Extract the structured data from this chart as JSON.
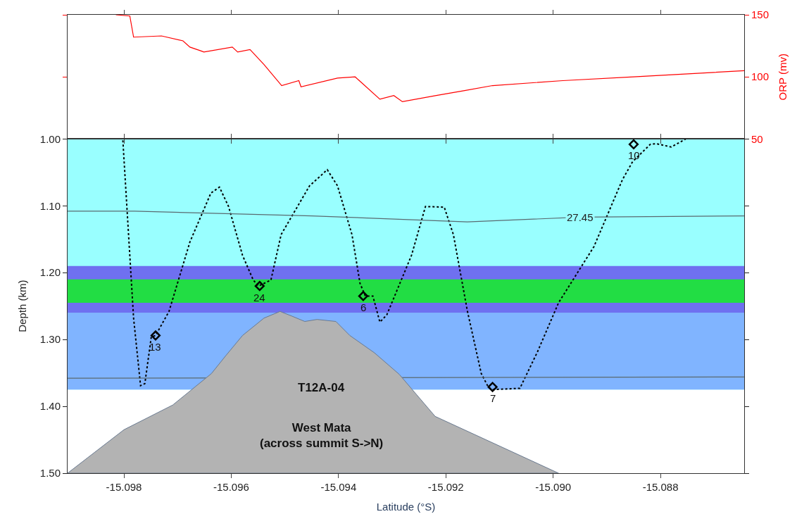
{
  "chart_data": [
    {
      "type": "line",
      "y2label": "ORP (mv)",
      "xlim": [
        -15.09905,
        -15.08644
      ],
      "xticks": [
        -15.098,
        -15.096,
        -15.094,
        -15.092,
        -15.09,
        -15.088
      ],
      "y2lim": [
        50,
        150
      ],
      "y2ticks": [
        50,
        100,
        150
      ],
      "tick_labels": "y",
      "grid": false,
      "legend": false,
      "series": [
        {
          "color": "#ff0000",
          "axis": "y2",
          "x": [
            -15.09815,
            -15.09789,
            -15.09782,
            -15.0973,
            -15.0969,
            -15.09677,
            -15.09657,
            -15.09651,
            -15.09598,
            -15.09588,
            -15.09565,
            -15.09539,
            -15.09506,
            -15.09474,
            -15.0947,
            -15.09402,
            -15.09369,
            -15.09323,
            -15.09297,
            -15.09281,
            -15.09218,
            -15.09165,
            -15.09113,
            -15.08982,
            -15.0885,
            -15.08644
          ],
          "values": [
            150,
            149,
            132,
            133,
            129,
            124,
            121,
            120,
            124,
            120,
            122,
            110,
            93,
            97,
            92,
            99,
            100,
            82,
            85,
            80,
            85,
            89,
            93,
            97,
            100,
            105
          ]
        }
      ]
    },
    {
      "type": "line",
      "xlabel": "Latitude (°S)",
      "ylabel": "Depth (km)",
      "xlim": [
        -15.09905,
        -15.08644
      ],
      "xticks": [
        -15.098,
        -15.096,
        -15.094,
        -15.092,
        {
          "value": -15.09,
          "label": "-15.090"
        },
        -15.088
      ],
      "ylim": [
        1.5,
        1.0
      ],
      "yticks": [
        {
          "value": 1.0,
          "label": "1.00"
        },
        {
          "value": 1.1,
          "label": "1.10"
        },
        {
          "value": 1.2,
          "label": "1.20"
        },
        {
          "value": 1.3,
          "label": "1.30"
        },
        {
          "value": 1.4,
          "label": "1.40"
        },
        {
          "value": 1.5,
          "label": "1.50"
        }
      ],
      "grid": false,
      "legend": false,
      "bands": [
        {
          "axis": "y",
          "from": 1.0,
          "to": 1.375,
          "color": "#99ffff"
        },
        {
          "axis": "y",
          "from": 1.26,
          "to": 1.375,
          "color": "#80b4ff"
        },
        {
          "axis": "y",
          "from": 1.19,
          "to": 1.26,
          "color": "#6f70f0"
        },
        {
          "axis": "y",
          "from": 1.21,
          "to": 1.245,
          "color": "#22dd44"
        }
      ],
      "series": [
        {
          "type": "line",
          "color": "#000000",
          "line_style": "dotted",
          "marker": "none",
          "x": [
            -15.09802,
            -15.09782,
            -15.09769,
            -15.09761,
            -15.09749,
            -15.09741,
            -15.09716,
            -15.09677,
            -15.09638,
            -15.09622,
            -15.09605,
            -15.09579,
            -15.09559,
            -15.09549,
            -15.09526,
            -15.09507,
            -15.09454,
            -15.09421,
            -15.09402,
            -15.09375,
            -15.0936,
            -15.0935,
            -15.09336,
            -15.09323,
            -15.0931,
            -15.09264,
            -15.09238,
            -15.09203,
            -15.09186,
            -15.0916,
            -15.09134,
            -15.09121,
            -15.09114,
            -15.09062,
            -15.09029,
            -15.0899,
            -15.08924,
            -15.08871,
            -15.08852,
            -15.08819,
            -15.08808,
            -15.0878,
            -15.08753
          ],
          "values": [
            1.002,
            1.268,
            1.369,
            1.366,
            1.296,
            1.294,
            1.258,
            1.154,
            1.081,
            1.072,
            1.101,
            1.174,
            1.211,
            1.22,
            1.211,
            1.143,
            1.07,
            1.046,
            1.07,
            1.143,
            1.216,
            1.235,
            1.235,
            1.274,
            1.263,
            1.174,
            1.101,
            1.102,
            1.143,
            1.257,
            1.351,
            1.371,
            1.375,
            1.373,
            1.318,
            1.245,
            1.161,
            1.061,
            1.034,
            1.008,
            1.007,
            1.012,
            1.0
          ]
        },
        {
          "type": "line",
          "color": "#5a6a70",
          "line_style": "solid",
          "marker": "none",
          "name": "27.45",
          "x": [
            -15.09905,
            -15.0978,
            -15.0945,
            -15.0916,
            -15.0895,
            -15.08644
          ],
          "values": [
            1.108,
            1.108,
            1.115,
            1.124,
            1.117,
            1.115
          ]
        },
        {
          "type": "line",
          "color": "#5a6a70",
          "line_style": "solid",
          "marker": "none",
          "x": [
            -15.09905,
            -15.08644
          ],
          "values": [
            1.358,
            1.356
          ]
        },
        {
          "type": "area",
          "color": "#b3b3b3",
          "x": [
            -15.09905,
            -15.098,
            -15.09709,
            -15.09637,
            -15.09611,
            -15.09579,
            -15.09539,
            -15.09509,
            -15.09487,
            -15.09463,
            -15.0944,
            -15.09405,
            -15.09379,
            -15.09333,
            -15.09287,
            -15.0922,
            -15.0899
          ],
          "values": [
            1.5,
            1.435,
            1.398,
            1.351,
            1.325,
            1.294,
            1.268,
            1.258,
            1.265,
            1.273,
            1.27,
            1.273,
            1.294,
            1.32,
            1.352,
            1.415,
            1.5
          ]
        },
        {
          "type": "scatter",
          "color": "#000000",
          "marker": "diamond",
          "x": [
            -15.09741,
            -15.09547,
            -15.09354,
            -15.09113,
            -15.0885
          ],
          "values": [
            1.294,
            1.22,
            1.235,
            1.371,
            1.008
          ]
        }
      ],
      "annotations": [
        {
          "text": "13",
          "x": -15.09741,
          "y": 1.294
        },
        {
          "text": "24",
          "x": -15.09547,
          "y": 1.22
        },
        {
          "text": "6",
          "x": -15.09354,
          "y": 1.235
        },
        {
          "text": "7",
          "x": -15.09113,
          "y": 1.371
        },
        {
          "text": "10",
          "x": -15.0885,
          "y": 1.008
        },
        "T12A-04",
        "West Mata\n(across summit S->N)"
      ]
    }
  ]
}
